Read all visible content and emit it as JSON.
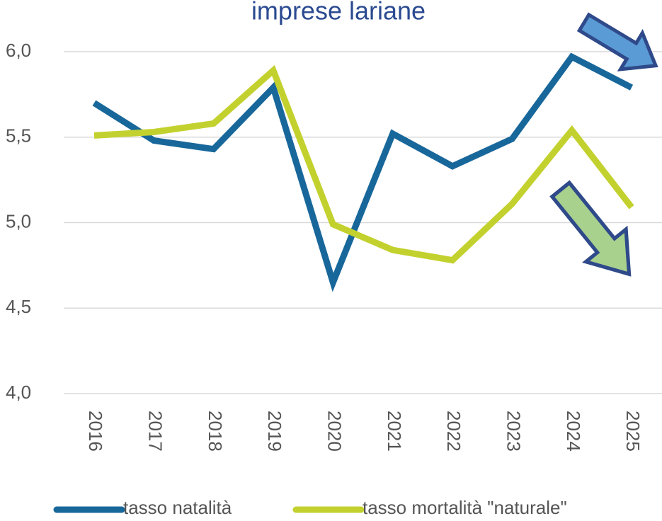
{
  "chart_data": {
    "type": "line",
    "title": "imprese lariane",
    "categories": [
      "2016",
      "2017",
      "2018",
      "2019",
      "2020",
      "2021",
      "2022",
      "2023",
      "2024",
      "2025"
    ],
    "series": [
      {
        "name": "tasso natalità",
        "color": "#18679b",
        "values": [
          5.7,
          5.48,
          5.43,
          5.79,
          4.65,
          5.52,
          5.33,
          5.49,
          5.97,
          5.79
        ]
      },
      {
        "name": "tasso mortalità \"naturale\"",
        "color": "#c3d12e",
        "values": [
          5.51,
          5.53,
          5.58,
          5.89,
          4.99,
          4.84,
          4.78,
          5.11,
          5.54,
          5.09
        ]
      }
    ],
    "ylim": [
      4.0,
      6.0
    ],
    "yticks": [
      {
        "value": 4.0,
        "label": "4,0"
      },
      {
        "value": 4.5,
        "label": "4,5"
      },
      {
        "value": 5.0,
        "label": "5,0"
      },
      {
        "value": 5.5,
        "label": "5,5"
      },
      {
        "value": 6.0,
        "label": "6,0"
      }
    ],
    "grid": true
  }
}
